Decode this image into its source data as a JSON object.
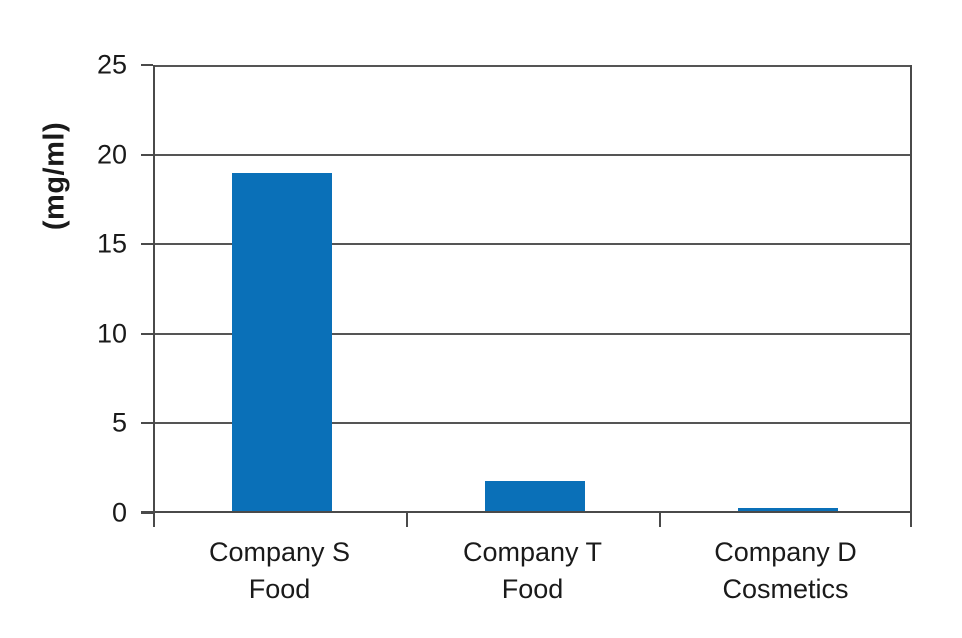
{
  "chart_data": {
    "type": "bar",
    "title": "",
    "ylabel": "(mg/ml)",
    "xlabel": "",
    "ylim": [
      0,
      25
    ],
    "yticks": [
      0,
      5,
      10,
      15,
      20,
      25
    ],
    "categories": [
      [
        "Company S",
        "Food"
      ],
      [
        "Company T",
        "Food"
      ],
      [
        "Company D",
        "Cosmetics"
      ]
    ],
    "values": [
      19,
      1.8,
      0.3
    ],
    "bar_color": "#0a70b8",
    "grid": true,
    "legend": false
  },
  "colors": {
    "bar": "#0a70b8",
    "gridline": "#555555",
    "axis": "#4a4a4a",
    "text": "#1a1a1a",
    "background": "#ffffff"
  }
}
